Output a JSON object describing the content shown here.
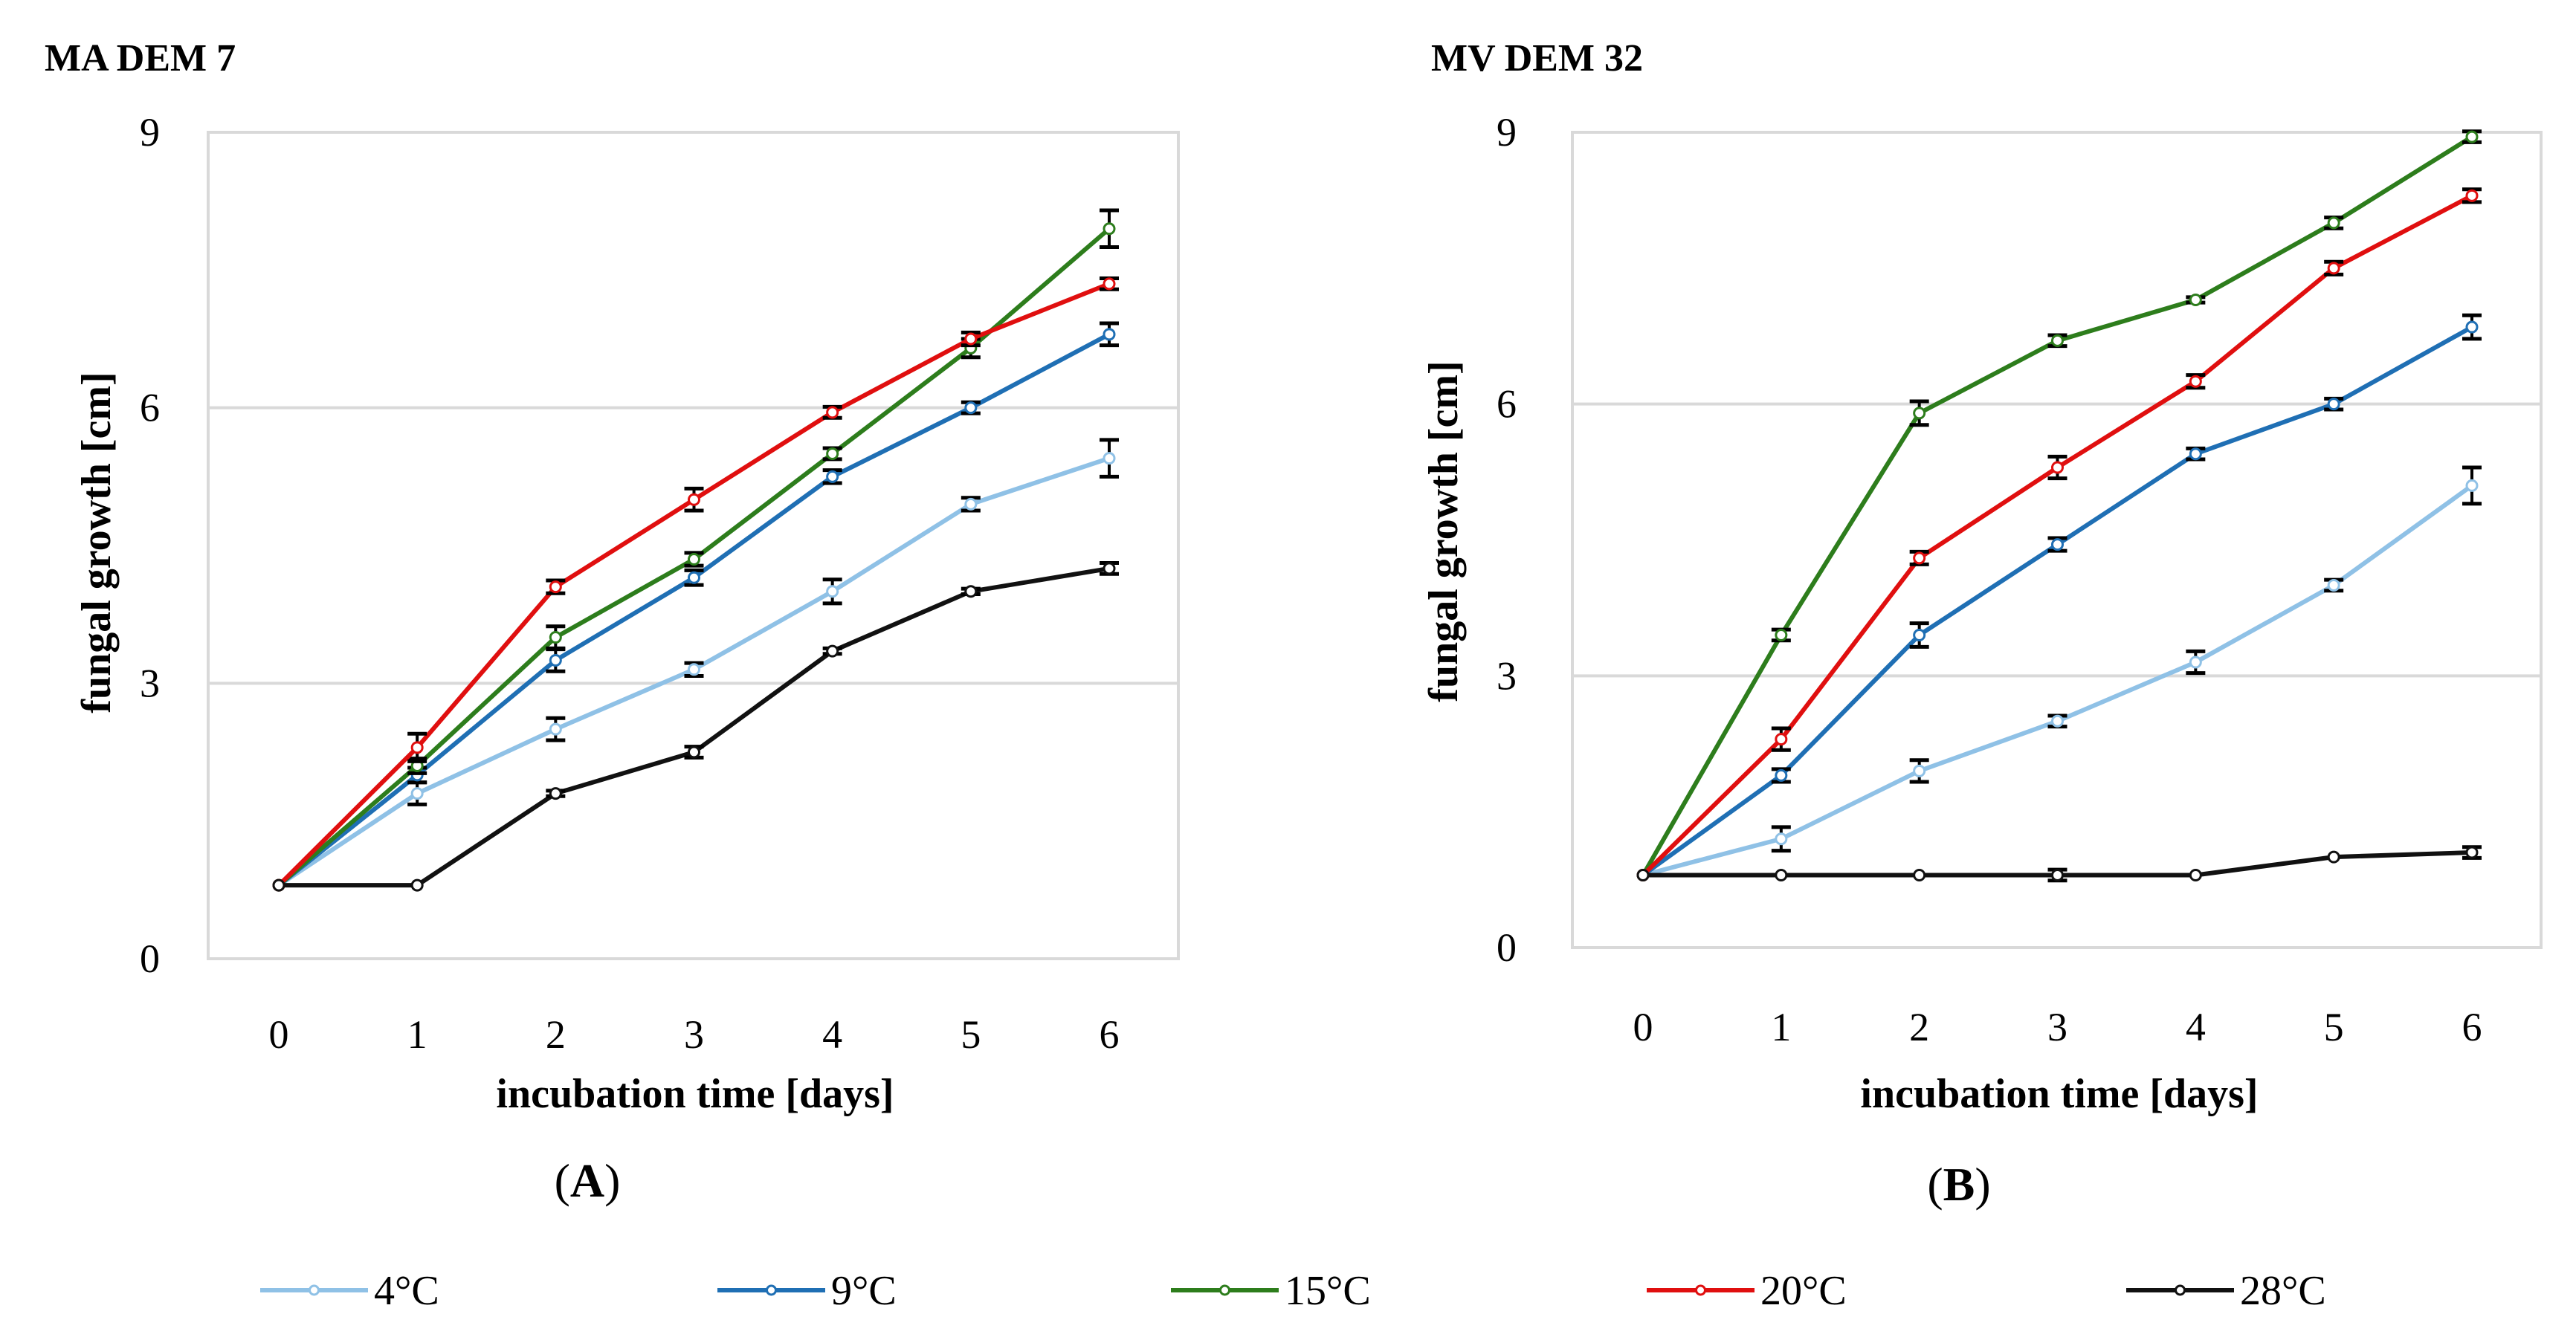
{
  "figure": {
    "panel_letters": [
      "A",
      "B"
    ]
  },
  "legend": [
    "4°C",
    "9°C",
    "15°C",
    "20°C",
    "28°C"
  ],
  "chart_data": [
    {
      "type": "line",
      "title": "MA DEM 7",
      "panel": "A",
      "xlabel": "incubation time [days]",
      "ylabel": "fungal growth [cm]",
      "x": [
        0,
        1,
        2,
        3,
        4,
        5,
        6
      ],
      "x_tick_labels": [
        "0",
        "1",
        "2",
        "3",
        "4",
        "5",
        "6"
      ],
      "ylim": [
        0,
        9
      ],
      "y_ticks": [
        0,
        3,
        6,
        9
      ],
      "y_tick_labels": [
        "0",
        "3",
        "6",
        "9"
      ],
      "grid": true,
      "legend_position": "bottom",
      "series": [
        {
          "name": "4°C",
          "color": "#8fc1e6",
          "values": [
            0.8,
            1.8,
            2.5,
            3.15,
            4.0,
            4.95,
            5.45
          ],
          "errors": [
            0,
            0.12,
            0.12,
            0.07,
            0.13,
            0.07,
            0.2
          ]
        },
        {
          "name": "9°C",
          "color": "#1f6fb4",
          "values": [
            0.8,
            2.0,
            3.25,
            4.15,
            5.25,
            6.0,
            6.8
          ],
          "errors": [
            0,
            0.08,
            0.12,
            0.08,
            0.07,
            0.06,
            0.12
          ]
        },
        {
          "name": "15°C",
          "color": "#2d7d1c",
          "values": [
            0.8,
            2.1,
            3.5,
            4.35,
            5.5,
            6.65,
            7.95
          ],
          "errors": [
            0,
            0.08,
            0.12,
            0.07,
            0.06,
            0.1,
            0.2
          ]
        },
        {
          "name": "20°C",
          "color": "#e00f0f",
          "values": [
            0.8,
            2.3,
            4.05,
            5.0,
            5.95,
            6.75,
            7.35
          ],
          "errors": [
            0,
            0.15,
            0.07,
            0.12,
            0.06,
            0.07,
            0.06
          ]
        },
        {
          "name": "28°C",
          "color": "#111111",
          "values": [
            0.8,
            0.8,
            1.8,
            2.25,
            3.35,
            4.0,
            4.25
          ],
          "errors": [
            0,
            0,
            0.03,
            0.06,
            0.03,
            0.03,
            0.06
          ]
        }
      ]
    },
    {
      "type": "line",
      "title": "MV DEM 32",
      "panel": "B",
      "xlabel": "incubation time [days]",
      "ylabel": "fungal growth [cm]",
      "x": [
        0,
        1,
        2,
        3,
        4,
        5,
        6
      ],
      "x_tick_labels": [
        "0",
        "1",
        "2",
        "3",
        "4",
        "5",
        "6"
      ],
      "ylim": [
        0,
        9
      ],
      "y_ticks": [
        0,
        3,
        6,
        9
      ],
      "y_tick_labels": [
        "0",
        "3",
        "6",
        "9"
      ],
      "grid": true,
      "legend_position": "bottom",
      "series": [
        {
          "name": "4°C",
          "color": "#8fc1e6",
          "values": [
            0.8,
            1.2,
            1.95,
            2.5,
            3.15,
            4.0,
            5.1
          ],
          "errors": [
            0,
            0.13,
            0.12,
            0.06,
            0.12,
            0.06,
            0.2
          ]
        },
        {
          "name": "9°C",
          "color": "#1f6fb4",
          "values": [
            0.8,
            1.9,
            3.45,
            4.45,
            5.45,
            6.0,
            6.85
          ],
          "errors": [
            0,
            0.07,
            0.13,
            0.07,
            0.06,
            0.06,
            0.13
          ]
        },
        {
          "name": "15°C",
          "color": "#2d7d1c",
          "values": [
            0.8,
            3.45,
            5.9,
            6.7,
            7.15,
            8.0,
            8.95
          ],
          "errors": [
            0,
            0.06,
            0.13,
            0.06,
            0.03,
            0.06,
            0.06
          ]
        },
        {
          "name": "20°C",
          "color": "#e00f0f",
          "values": [
            0.8,
            2.3,
            4.3,
            5.3,
            6.25,
            7.5,
            8.3
          ],
          "errors": [
            0,
            0.12,
            0.07,
            0.12,
            0.07,
            0.07,
            0.07
          ]
        },
        {
          "name": "28°C",
          "color": "#111111",
          "values": [
            0.8,
            0.8,
            0.8,
            0.8,
            0.8,
            1.0,
            1.05
          ],
          "errors": [
            0,
            0,
            0,
            0.06,
            0,
            0,
            0.06
          ]
        }
      ]
    }
  ]
}
